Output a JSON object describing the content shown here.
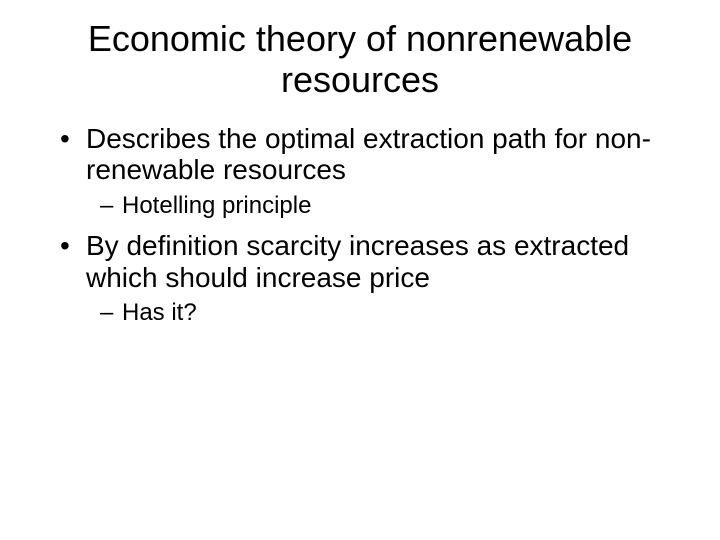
{
  "slide": {
    "title": "Economic theory of nonrenewable resources",
    "bullets": {
      "b1": "Describes the optimal extraction path for non-renewable resources",
      "b1_sub1": "Hotelling principle",
      "b2": "By definition scarcity increases as extracted which should increase price",
      "b2_sub1": "Has it?"
    },
    "style": {
      "background_color": "#ffffff",
      "text_color": "#000000",
      "title_fontsize": 36,
      "level1_fontsize": 28,
      "level2_fontsize": 24,
      "font_family": "Arial"
    }
  }
}
